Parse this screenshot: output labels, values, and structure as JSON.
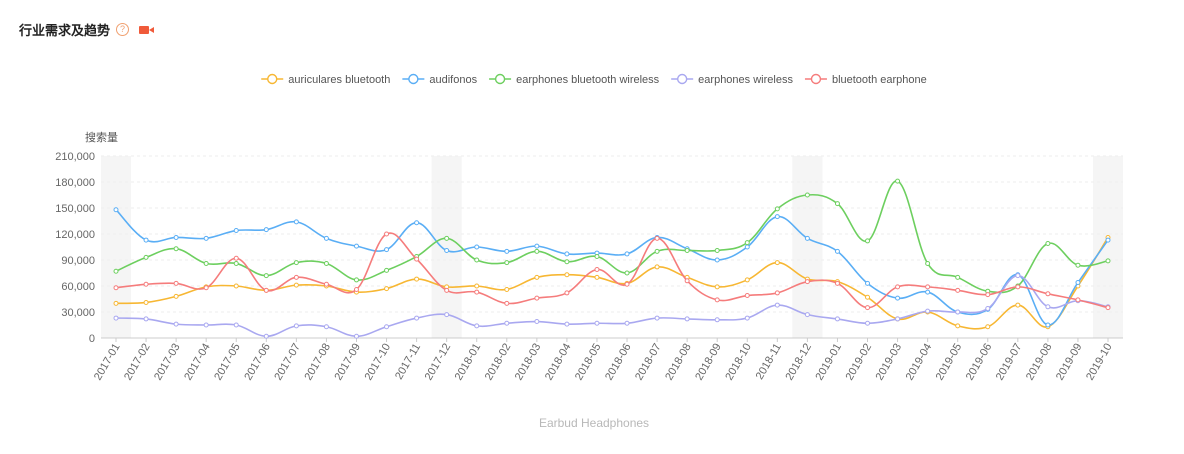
{
  "header": {
    "title": "行业需求及趋势",
    "help_icon": "?",
    "video_icon": "video-camera-icon"
  },
  "colors": {
    "shade": "#f5f5f5",
    "grid": "#eeeeee",
    "axis": "#cccccc"
  },
  "chart_data": {
    "type": "line",
    "smooth": true,
    "title": "Earbud Headphones",
    "ylabel": "搜索量",
    "xlabel": "",
    "ylim": [
      0,
      210000
    ],
    "yticks": [
      "0",
      "30,000",
      "60,000",
      "90,000",
      "120,000",
      "150,000",
      "180,000",
      "210,000"
    ],
    "ytick_values": [
      0,
      30000,
      60000,
      90000,
      120000,
      150000,
      180000,
      210000
    ],
    "legend_position": "top-center",
    "grid": true,
    "shaded_categories": [
      "2017-01",
      "2017-12",
      "2018-12",
      "2019-10"
    ],
    "x": [
      "2017-01",
      "2017-02",
      "2017-03",
      "2017-04",
      "2017-05",
      "2017-06",
      "2017-07",
      "2017-08",
      "2017-09",
      "2017-10",
      "2017-11",
      "2017-12",
      "2018-01",
      "2018-02",
      "2018-03",
      "2018-04",
      "2018-05",
      "2018-06",
      "2018-07",
      "2018-08",
      "2018-09",
      "2018-10",
      "2018-11",
      "2018-12",
      "2019-01",
      "2019-02",
      "2019-03",
      "2019-04",
      "2019-05",
      "2019-06",
      "2019-07",
      "2019-08",
      "2019-09",
      "2019-10"
    ],
    "series": [
      {
        "name": "auriculares bluetooth",
        "color": "#f7b733",
        "values": [
          40000,
          41000,
          48000,
          59000,
          60000,
          55000,
          61000,
          60000,
          53000,
          57000,
          68000,
          59000,
          60000,
          56000,
          70000,
          73000,
          70000,
          63000,
          82000,
          70000,
          59000,
          67000,
          87000,
          68000,
          65000,
          47000,
          22000,
          30000,
          14000,
          13000,
          38000,
          13000,
          60000,
          116000
        ]
      },
      {
        "name": "audifonos",
        "color": "#5aaef5",
        "values": [
          148000,
          113000,
          116000,
          115000,
          124000,
          125000,
          134000,
          115000,
          106000,
          102000,
          133000,
          101000,
          105000,
          100000,
          106000,
          97000,
          98000,
          97000,
          116000,
          103000,
          90000,
          105000,
          140000,
          115000,
          100000,
          63000,
          46000,
          53000,
          30000,
          33000,
          73000,
          15000,
          64000,
          113000
        ]
      },
      {
        "name": "earphones bluetooth wireless",
        "color": "#6dcf5f",
        "values": [
          77000,
          93000,
          103000,
          86000,
          86000,
          72000,
          87000,
          86000,
          67000,
          78000,
          94000,
          115000,
          90000,
          87000,
          100000,
          88000,
          94000,
          75000,
          100000,
          101000,
          101000,
          110000,
          149000,
          165000,
          155000,
          112000,
          181000,
          86000,
          70000,
          54000,
          60000,
          109000,
          84000,
          89000
        ]
      },
      {
        "name": "earphones wireless",
        "color": "#a9a8f0",
        "values": [
          23000,
          22000,
          16000,
          15000,
          15000,
          2000,
          14000,
          13000,
          2000,
          13000,
          23000,
          27000,
          14000,
          17000,
          19000,
          16000,
          17000,
          17000,
          23000,
          22000,
          21000,
          23000,
          38000,
          27000,
          22000,
          17000,
          22000,
          31000,
          30000,
          34000,
          72000,
          36000,
          43000,
          36000
        ]
      },
      {
        "name": "bluetooth earphone",
        "color": "#f57c7c",
        "values": [
          58000,
          62000,
          63000,
          58000,
          92000,
          55000,
          70000,
          62000,
          56000,
          120000,
          91000,
          55000,
          53000,
          40000,
          46000,
          52000,
          79000,
          62000,
          115000,
          66000,
          44000,
          49000,
          52000,
          65000,
          63000,
          35000,
          59000,
          59000,
          55000,
          50000,
          59000,
          51000,
          44000,
          35000
        ]
      }
    ]
  }
}
